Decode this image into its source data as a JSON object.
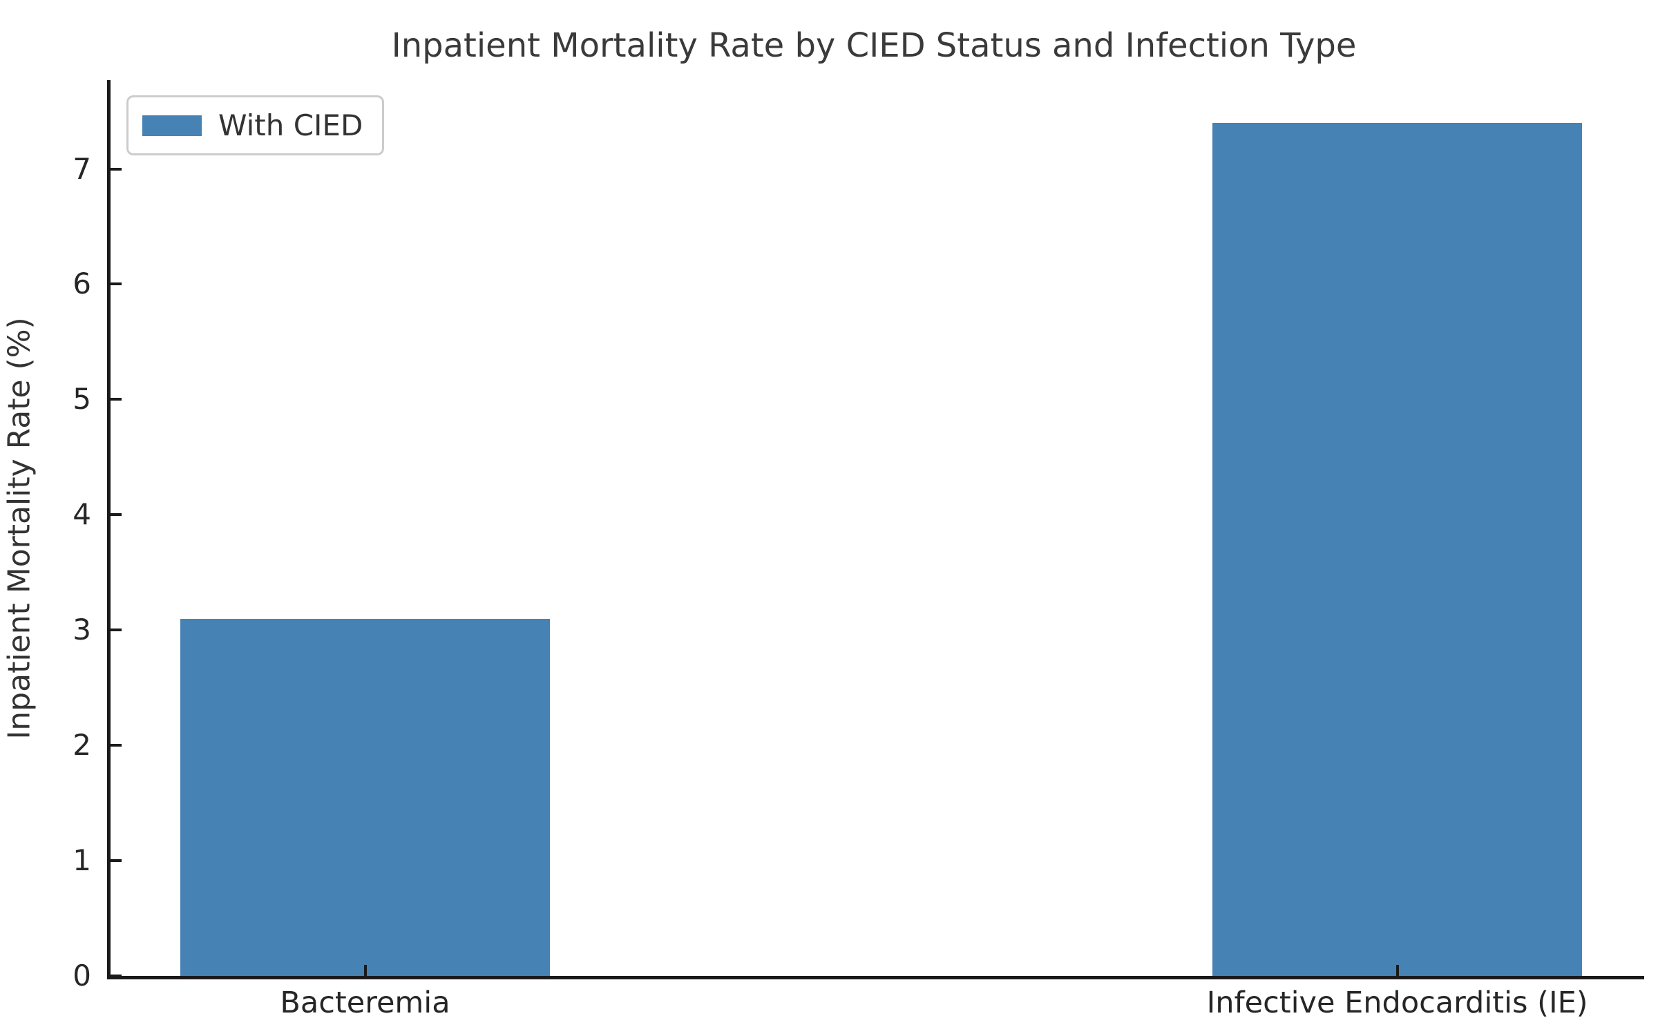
{
  "figure": {
    "title": "Inpatient Mortality Rate by CIED Status and Infection Type"
  },
  "chart_data": {
    "type": "bar",
    "title": "Inpatient Mortality Rate by CIED Status and Infection Type",
    "categories": [
      "Bacteremia",
      "Infective Endocarditis (IE)"
    ],
    "series": [
      {
        "name": "With CIED",
        "color": "#4682B4",
        "values": [
          3.1,
          7.4
        ]
      }
    ],
    "xlabel": "",
    "ylabel": "Inpatient Mortality Rate (%)",
    "ylim": [
      0,
      7.77
    ],
    "yticks": [
      0,
      1,
      2,
      3,
      4,
      5,
      6,
      7
    ],
    "grid": false,
    "legend": {
      "position": "upper-left",
      "items": [
        {
          "label": "With CIED",
          "color": "#4682B4"
        }
      ]
    },
    "layout_hints": {
      "bar_centers_pct": [
        16.6,
        83.9
      ],
      "bar_width_pct": 24.1,
      "tick_direction": "in"
    }
  },
  "colors": {
    "bar": "#4682B4",
    "text": "#333333",
    "title": "#3a3a3a",
    "axis": "#1a1a1a",
    "legend_border": "#cccccc",
    "background": "#ffffff"
  }
}
